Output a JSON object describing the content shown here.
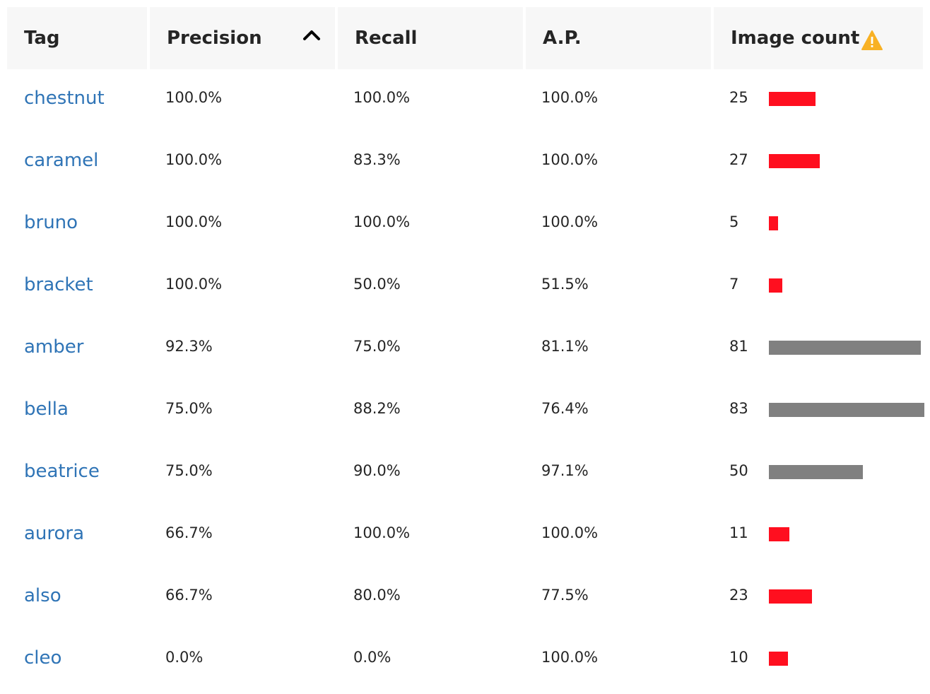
{
  "table": {
    "columns": [
      {
        "key": "tag",
        "label": "Tag"
      },
      {
        "key": "precision",
        "label": "Precision",
        "sorted": "ascending-indicator"
      },
      {
        "key": "recall",
        "label": "Recall"
      },
      {
        "key": "ap",
        "label": "A.P."
      },
      {
        "key": "image_count",
        "label": "Image count",
        "icon": "warning-icon"
      }
    ],
    "header_bg": "#f7f7f7",
    "bar_colors": {
      "low": "#ff0f1f",
      "ok": "#808080"
    },
    "warning_color": "#f8b124",
    "rows": [
      {
        "tag": "chestnut",
        "precision": "100.0%",
        "recall": "100.0%",
        "ap": "100.0%",
        "image_count": "25",
        "count": 25,
        "status": "low"
      },
      {
        "tag": "caramel",
        "precision": "100.0%",
        "recall": "83.3%",
        "ap": "100.0%",
        "image_count": "27",
        "count": 27,
        "status": "low"
      },
      {
        "tag": "bruno",
        "precision": "100.0%",
        "recall": "100.0%",
        "ap": "100.0%",
        "image_count": "5",
        "count": 5,
        "status": "low"
      },
      {
        "tag": "bracket",
        "precision": "100.0%",
        "recall": "50.0%",
        "ap": "51.5%",
        "image_count": "7",
        "count": 7,
        "status": "low"
      },
      {
        "tag": "amber",
        "precision": "92.3%",
        "recall": "75.0%",
        "ap": "81.1%",
        "image_count": "81",
        "count": 81,
        "status": "ok"
      },
      {
        "tag": "bella",
        "precision": "75.0%",
        "recall": "88.2%",
        "ap": "76.4%",
        "image_count": "83",
        "count": 83,
        "status": "ok"
      },
      {
        "tag": "beatrice",
        "precision": "75.0%",
        "recall": "90.0%",
        "ap": "97.1%",
        "image_count": "50",
        "count": 50,
        "status": "ok"
      },
      {
        "tag": "aurora",
        "precision": "66.7%",
        "recall": "100.0%",
        "ap": "100.0%",
        "image_count": "11",
        "count": 11,
        "status": "low"
      },
      {
        "tag": "also",
        "precision": "66.7%",
        "recall": "80.0%",
        "ap": "77.5%",
        "image_count": "23",
        "count": 23,
        "status": "low"
      },
      {
        "tag": "cleo",
        "precision": "0.0%",
        "recall": "0.0%",
        "ap": "100.0%",
        "image_count": "10",
        "count": 10,
        "status": "low"
      }
    ]
  }
}
